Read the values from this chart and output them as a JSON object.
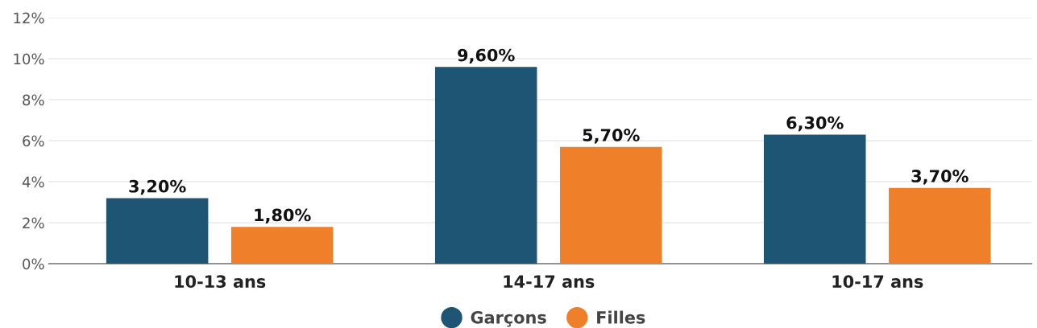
{
  "chart_data": {
    "type": "bar",
    "categories": [
      "10-13 ans",
      "14-17 ans",
      "10-17 ans"
    ],
    "series": [
      {
        "name": "Garçons",
        "color": "#1f5574",
        "values": [
          3.2,
          9.6,
          6.3
        ],
        "value_labels": [
          "3,20%",
          "9,60%",
          "6,30%"
        ]
      },
      {
        "name": "Filles",
        "color": "#f07f2a",
        "values": [
          1.8,
          5.7,
          3.7
        ],
        "value_labels": [
          "1,80%",
          "5,70%",
          "3,70%"
        ]
      }
    ],
    "ylim": [
      0,
      12
    ],
    "yticks": [
      {
        "value": 0,
        "label": "0%"
      },
      {
        "value": 2,
        "label": "2%"
      },
      {
        "value": 4,
        "label": "4%"
      },
      {
        "value": 6,
        "label": "6%"
      },
      {
        "value": 8,
        "label": "8%"
      },
      {
        "value": 10,
        "label": "10%"
      },
      {
        "value": 12,
        "label": "12%"
      }
    ],
    "grid": "y",
    "legend": "bottom"
  }
}
